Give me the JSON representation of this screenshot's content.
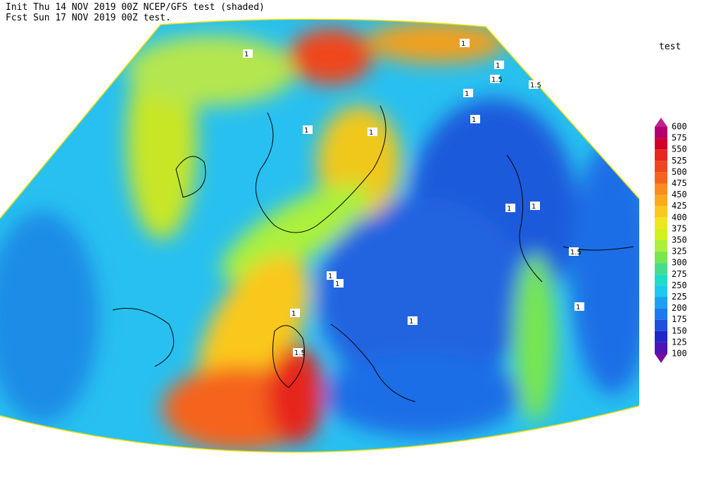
{
  "header": {
    "line1": "Init  Thu 14 NOV 2019 00Z  NCEP/GFS test (shaded)",
    "line2": "Fcst Sun 17 NOV 2019 00Z  test."
  },
  "legend": {
    "title": "test",
    "levels": [
      600,
      575,
      550,
      525,
      500,
      475,
      450,
      425,
      400,
      375,
      350,
      325,
      300,
      275,
      250,
      225,
      200,
      175,
      150,
      125,
      100
    ],
    "colors": [
      "#c0208c",
      "#b4006e",
      "#d20028",
      "#e6281e",
      "#f0461e",
      "#f5641e",
      "#fa8c1e",
      "#faaa1e",
      "#fac81e",
      "#f0e61e",
      "#d2f01e",
      "#aaf03c",
      "#78e650",
      "#46dc8c",
      "#1edcc8",
      "#1ec8f0",
      "#1ea0f0",
      "#1e78f0",
      "#1e50dc",
      "#1e28c8",
      "#5014b4",
      "#780aa0"
    ]
  },
  "contour_labels": [
    "1",
    "1",
    "1.5",
    "1.5",
    "1",
    "1",
    "1",
    "1",
    "1",
    "1",
    "1.5",
    "1",
    "1",
    "1",
    "1",
    "1.5",
    "1",
    "1"
  ]
}
